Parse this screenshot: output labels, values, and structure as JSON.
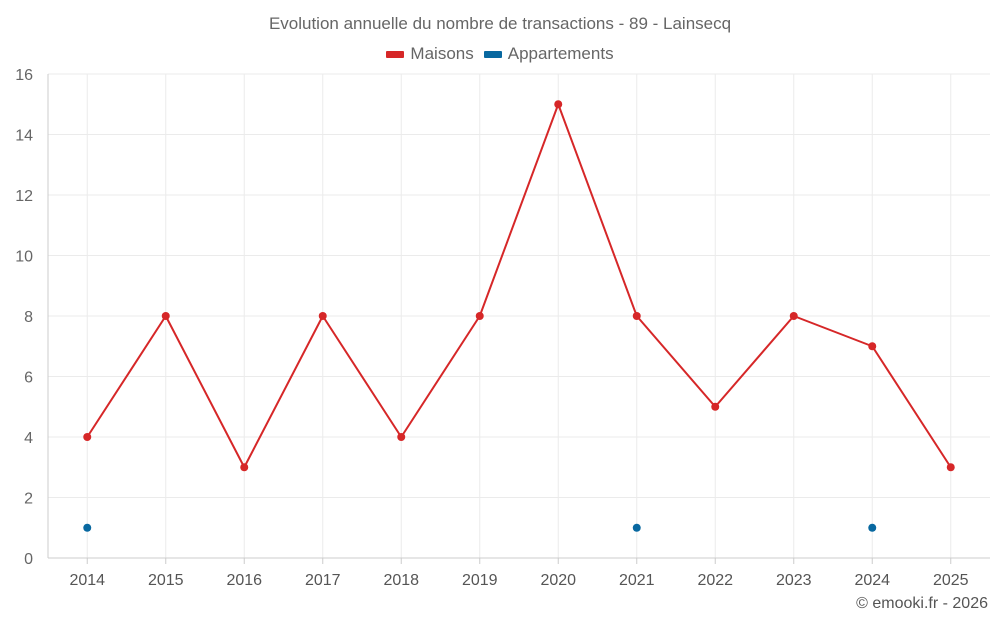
{
  "chart_data": {
    "type": "line",
    "title": "Evolution annuelle du nombre de transactions - 89 - Lainsecq",
    "categories": [
      "2014",
      "2015",
      "2016",
      "2017",
      "2018",
      "2019",
      "2020",
      "2021",
      "2022",
      "2023",
      "2024",
      "2025"
    ],
    "series": [
      {
        "name": "Maisons",
        "color": "#d62728",
        "values": [
          4,
          8,
          3,
          8,
          4,
          8,
          15,
          8,
          5,
          8,
          7,
          3
        ]
      },
      {
        "name": "Appartements",
        "color": "#0868a0",
        "values": [
          1,
          null,
          null,
          null,
          null,
          null,
          null,
          1,
          null,
          null,
          1,
          null
        ]
      }
    ],
    "ylim": [
      0,
      16
    ],
    "yticks": [
      0,
      2,
      4,
      6,
      8,
      10,
      12,
      14,
      16
    ],
    "xlabel": "",
    "ylabel": "",
    "grid": true,
    "legend_position": "top-center"
  },
  "credit": "© emooki.fr - 2026",
  "legend": {
    "maisons_label": "Maisons",
    "appartements_label": "Appartements"
  }
}
